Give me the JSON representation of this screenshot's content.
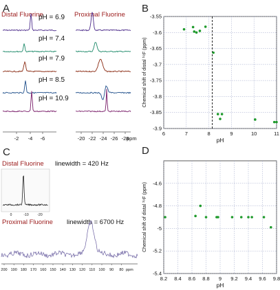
{
  "panels": {
    "A": {
      "label": "A",
      "left_title": "Distal Fluorine",
      "right_title": "Proximal Fluorine",
      "ph_labels": [
        "pH = 6.9",
        "pH = 7.4",
        "pH = 7.9",
        "pH = 8.5",
        "pH = 10.9"
      ],
      "trace_colors": [
        "#4b2a8a",
        "#1e8a6a",
        "#8a2a12",
        "#1e4e8a",
        "#7a1e6a"
      ],
      "left_ticks": [
        "-2",
        "-4",
        "-6"
      ],
      "right_ticks": [
        "-20",
        "-22",
        "-24",
        "-26",
        "-28"
      ],
      "unit": "ppm"
    },
    "C": {
      "label": "C",
      "distal_title": "Distal Fluorine",
      "distal_linewidth": "linewidth = 420 Hz",
      "proximal_title": "Proximal Fluorine",
      "proximal_linewidth": "linewidth = 6700 Hz",
      "inset_ticks": [
        "0",
        "-10",
        "-20"
      ],
      "axis_ticks": [
        "200",
        "190",
        "180",
        "170",
        "160",
        "150",
        "140",
        "130",
        "120",
        "110",
        "100",
        "90",
        "80"
      ],
      "unit": "ppm"
    }
  },
  "chart_data": [
    {
      "panel": "B",
      "type": "scatter",
      "xlabel": "pH",
      "ylabel": "Chemical shift of distal ¹⁹F (ppm)",
      "xlim": [
        6,
        11
      ],
      "ylim": [
        -3.9,
        -3.55
      ],
      "xticks": [
        "6",
        "7",
        "8",
        "9",
        "10",
        "11"
      ],
      "yticks": [
        "-3.55",
        "-3.6",
        "-3.65",
        "-3.7",
        "-3.75",
        "-3.8",
        "-3.85",
        "-3.9"
      ],
      "grid": true,
      "marker_color": "#1f9a2c",
      "reference_line_x": 8.15,
      "points": [
        {
          "x": 6.9,
          "y": -3.59
        },
        {
          "x": 7.3,
          "y": -3.583
        },
        {
          "x": 7.35,
          "y": -3.597
        },
        {
          "x": 7.45,
          "y": -3.6
        },
        {
          "x": 7.6,
          "y": -3.595
        },
        {
          "x": 7.85,
          "y": -3.582
        },
        {
          "x": 8.2,
          "y": -3.663
        },
        {
          "x": 8.4,
          "y": -3.855
        },
        {
          "x": 8.5,
          "y": -3.87
        },
        {
          "x": 8.58,
          "y": -3.855
        },
        {
          "x": 10.05,
          "y": -3.872
        },
        {
          "x": 10.9,
          "y": -3.88
        },
        {
          "x": 11.0,
          "y": -3.88
        }
      ]
    },
    {
      "panel": "D",
      "type": "scatter",
      "xlabel": "pH",
      "ylabel": "Chemical shift of distal ¹⁹F (ppm)",
      "xlim": [
        8.2,
        9.8
      ],
      "ylim": [
        -5.4,
        -4.4
      ],
      "xticks": [
        "8.2",
        "8.4",
        "8.6",
        "8.8",
        "9",
        "9.2",
        "9.4",
        "9.6",
        "9.8"
      ],
      "yticks": [
        "-4.6",
        "-4.8",
        "-5",
        "-5.2",
        "-5.4"
      ],
      "grid": true,
      "marker_color": "#1f9a2c",
      "points": [
        {
          "x": 8.22,
          "y": -4.9
        },
        {
          "x": 8.65,
          "y": -4.89
        },
        {
          "x": 8.72,
          "y": -4.8
        },
        {
          "x": 8.8,
          "y": -4.9
        },
        {
          "x": 8.95,
          "y": -4.9
        },
        {
          "x": 8.97,
          "y": -4.9
        },
        {
          "x": 9.17,
          "y": -4.9
        },
        {
          "x": 9.3,
          "y": -4.9
        },
        {
          "x": 9.4,
          "y": -4.9
        },
        {
          "x": 9.45,
          "y": -4.9
        },
        {
          "x": 9.62,
          "y": -4.9
        },
        {
          "x": 9.72,
          "y": -4.99
        }
      ]
    }
  ]
}
